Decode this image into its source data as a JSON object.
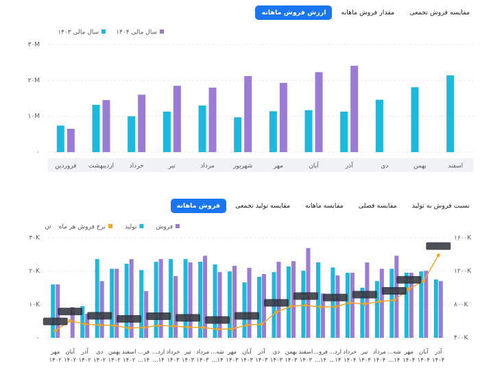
{
  "top_tabs": [
    "ارزش فروش ماهانه",
    "مقدار فروش ماهانه",
    "مقایسه فروش تجمعی"
  ],
  "bottom_tabs": [
    "فروش ماهانه",
    "مقایسه تولید تجمعی",
    "مقایسه ماهانه",
    "مقایسه فصلی",
    "نسبت فروش به تولید"
  ],
  "chart_data": [
    {
      "type": "bar",
      "categories": [
        "فروردین",
        "اردیبهشت",
        "خرداد",
        "تیر",
        "مرداد",
        "شهریور",
        "مهر",
        "آبان",
        "آذر",
        "دی",
        "بهمن",
        "اسفند"
      ],
      "series": [
        {
          "name": "سال مالی ۱۴۰۳",
          "color": "#1cb9de",
          "values": [
            7.4,
            13.2,
            10,
            11.3,
            13,
            9.7,
            11.4,
            11.7,
            11.3,
            14.6,
            18.1,
            21.4
          ]
        },
        {
          "name": "سال مالی ۱۴۰۴",
          "color": "#9a7bd6",
          "values": [
            6.5,
            14.5,
            16,
            18.5,
            18,
            21.2,
            19.3,
            22.3,
            24.1,
            null,
            null,
            null
          ]
        }
      ],
      "ylim": [
        0,
        30
      ],
      "yticks": [
        {
          "value": 0,
          "label": "۰"
        },
        {
          "value": 10,
          "label": "۱۰M"
        },
        {
          "value": 20,
          "label": "۲۰M"
        },
        {
          "value": 30,
          "label": "۳۰M"
        }
      ],
      "grid": true
    },
    {
      "type": "combo",
      "y_label": "تن",
      "categories": [
        "مهر ۱۴۰۲",
        "آبان ۱۴۰۲",
        "آذر ۱۴۰۲",
        "دی ۱۴۰۲",
        "بهمن ۱۴۰۲",
        "اسفند ۱۴۰۲",
        "فر... ۱۴...",
        "ارد... ۱۴...",
        "خرداد ۱۴۰۳",
        "تیر ۱۴۰۳",
        "مرداد ۱۴۰۳",
        "شه... ۱۴...",
        "مهر ۱۴۰۳",
        "آبان ۱۴۰۳",
        "آذر ۱۴۰۳",
        "دی ۱۴۰۳",
        "بهمن ۱۴۰۳",
        "اسفند ۱۴۰۳",
        "فرو... ۱۴...",
        "ارد... ۱۴...",
        "خرداد ۱۴۰۴",
        "تیر ۱۴۰۴",
        "مرداد ۱۴۰۴",
        "شه... ۱۴...",
        "مهر ۱۴۰۴",
        "آبان ۱۴۰۴",
        "آذر ۱۴۰۴"
      ],
      "series": [
        {
          "name": "فروش",
          "color": "#9a7bd6",
          "type": "bar",
          "values": [
            16,
            9.2,
            7.2,
            17,
            20.7,
            23.6,
            14,
            23.6,
            18.5,
            22.6,
            24.6,
            19.7,
            21.6,
            21,
            19.1,
            22.8,
            23,
            26.9,
            13.3,
            18.7,
            19.5,
            22.6,
            20.7,
            24.6,
            19.5,
            20.1,
            17
          ]
        },
        {
          "name": "تولید",
          "color": "#1cb9de",
          "type": "bar",
          "values": [
            16,
            null,
            9.5,
            23.6,
            20.7,
            22.2,
            20.3,
            22.8,
            23.6,
            23.6,
            22.8,
            22,
            19.9,
            16.6,
            18.3,
            19.7,
            21.4,
            20.1,
            22.6,
            21.1,
            19.5,
            15,
            17,
            20.7,
            19.5,
            19.9,
            17.5
          ]
        },
        {
          "name": "نرخ فروش هر ماه",
          "color": "#f5a623",
          "type": "line",
          "axis": "y2",
          "values": [
            485,
            604,
            564,
            553,
            548,
            516,
            523,
            548,
            540,
            528,
            523,
            503,
            507,
            552,
            564,
            708,
            778,
            789,
            770,
            772,
            820,
            807,
            835,
            852,
            985,
            1082,
            1389
          ],
          "value_labels": [
            "۰.۴۸۵M",
            "۰.۶۰۴M",
            null,
            "۰.۵۵۳M",
            null,
            "۰.۵۱۶M",
            null,
            "۰.۵۴۸M",
            null,
            "۰.۵۲۸M",
            null,
            "۰.۵۰۳M",
            null,
            "۰.۵۵۲M",
            null,
            "۰.۷۰۸M",
            null,
            "۰.۷۸۹M",
            null,
            "۰.۷۷۲M",
            null,
            "۰.۸۰۷M",
            null,
            "۰.۸۵۲M",
            "۰.۹۸۵M",
            null,
            "۱.۳۸۹M"
          ]
        }
      ],
      "ylim": [
        0,
        30
      ],
      "yticks": [
        {
          "value": 0,
          "label": "۰"
        },
        {
          "value": 10,
          "label": "۱۰K"
        },
        {
          "value": 20,
          "label": "۲۰K"
        },
        {
          "value": 30,
          "label": "۳۰K"
        }
      ],
      "y2lim": [
        400,
        1600
      ],
      "y2ticks": [
        {
          "value": 400,
          "label": "۴۰۰K"
        },
        {
          "value": 800,
          "label": "۸۰۰K"
        },
        {
          "value": 1200,
          "label": "۱۲۰۰K"
        },
        {
          "value": 1600,
          "label": "۱۶۰۰K"
        }
      ],
      "grid": true
    }
  ]
}
